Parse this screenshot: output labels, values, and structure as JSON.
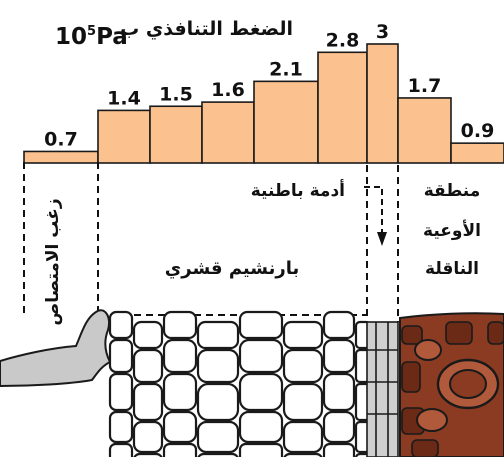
{
  "title": {
    "text": "الضغط التنافذي ب",
    "unit_base": "10",
    "unit_exp": "5",
    "unit_name": "Pa"
  },
  "bars": {
    "values": [
      "0.7",
      "1.4",
      "1.5",
      "1.6",
      "2.1",
      "2.8",
      "3",
      "1.7",
      "0.9"
    ],
    "fill": "#fbc18f",
    "stroke": "#1a1a1a"
  },
  "zones": {
    "root_hair": "زغب الامتصاص",
    "cortex": "بارنشيم قشري",
    "endodermis": "أدمة باطنية",
    "vascular_line1": "منطقة",
    "vascular_line2": "الأوعية",
    "vascular_line3": "الناقلة"
  },
  "colors": {
    "cell_wall": "#1a1a1a",
    "root_hair_fill": "#c9c9c9",
    "vascular_fill": "#8a3b22",
    "vascular_dark": "#5e2211"
  }
}
